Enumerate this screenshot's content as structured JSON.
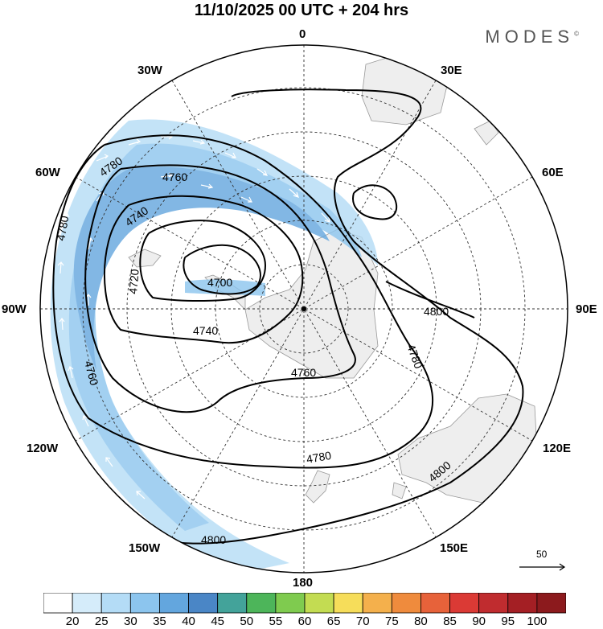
{
  "title": "11/10/2025  00 UTC  + 204 hrs",
  "brand": "MODES",
  "brand_mark": "©",
  "longitude_labels": {
    "lon_0": "0",
    "lon_30e": "30E",
    "lon_60e": "60E",
    "lon_90e": "90E",
    "lon_120e": "120E",
    "lon_150e": "150E",
    "lon_180": "180",
    "lon_150w": "150W",
    "lon_120w": "120W",
    "lon_90w": "90W",
    "lon_60w": "60W",
    "lon_30w": "30W"
  },
  "contour_labels": {
    "c4780_a": "4780",
    "c4760_a": "4760",
    "c4740_a": "4740",
    "c4720": "4720",
    "c4700": "4700",
    "c4740_b": "4740",
    "c4760_b": "4760",
    "c4780_b": "4780",
    "c4800_a": "4800",
    "c4780_c": "4780",
    "c4760_c": "4760",
    "c4780_d": "4780",
    "c4800_b": "4800",
    "c4800_c": "4800"
  },
  "vector_reference": "50",
  "colorbar": {
    "labels": [
      "20",
      "25",
      "30",
      "35",
      "40",
      "45",
      "50",
      "55",
      "60",
      "65",
      "70",
      "75",
      "80",
      "85",
      "90",
      "95",
      "100"
    ],
    "colors": [
      "#ffffff",
      "#d5ecfa",
      "#b4dcf6",
      "#8cc5ee",
      "#63a6de",
      "#4a86c6",
      "#43a39a",
      "#4db55a",
      "#7fcb4f",
      "#c3dc52",
      "#f6dd5a",
      "#f4b04c",
      "#ef8b3d",
      "#e7623a",
      "#db3a35",
      "#c02c2f",
      "#a41f24",
      "#8c1a1d"
    ]
  }
}
